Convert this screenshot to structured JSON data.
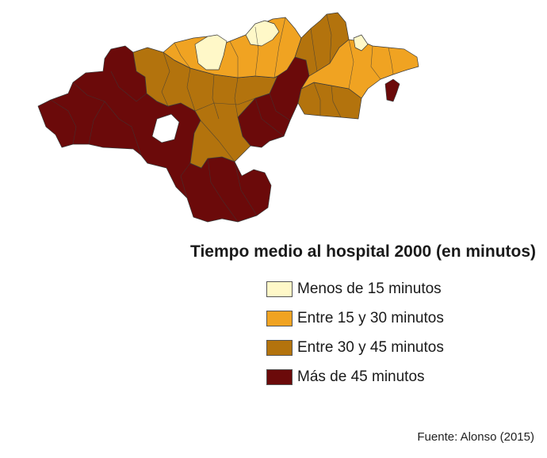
{
  "legend": {
    "title": "Tiempo medio al hospital 2000 (en minutos)",
    "items": [
      {
        "label": "Menos de 15 minutos",
        "color": "#fff8c8"
      },
      {
        "label": "Entre 15 y 30 minutos",
        "color": "#f0a322"
      },
      {
        "label": "Entre 30 y 45 minutos",
        "color": "#b3730d"
      },
      {
        "label": "Más de 45 minutos",
        "color": "#6b0a0a"
      }
    ]
  },
  "source": "Fuente: Alonso (2015)"
}
